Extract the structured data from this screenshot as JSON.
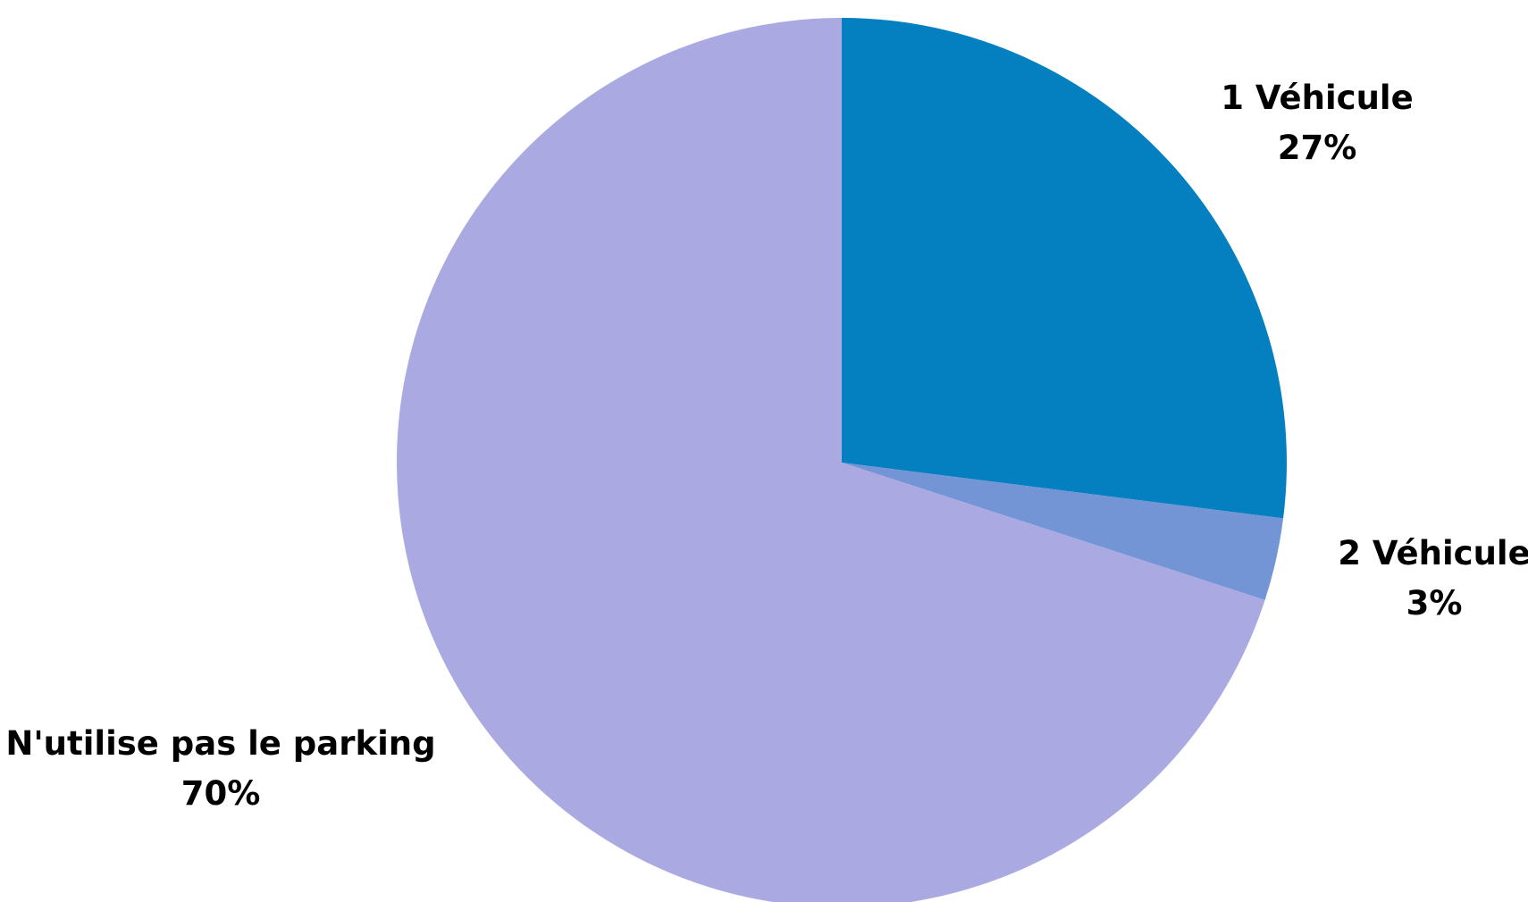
{
  "chart_data": {
    "type": "pie",
    "title": "",
    "slices": [
      {
        "label": "1 Véhicule",
        "value": 27,
        "value_label": "27%",
        "color": "#047fc0"
      },
      {
        "label": "2 Véhicule",
        "value": 3,
        "value_label": "3%",
        "color": "#7395d5"
      },
      {
        "label": "N'utilise pas le parking",
        "value": 70,
        "value_label": "70%",
        "color": "#aba9e2"
      }
    ],
    "start_angle": "12 o'clock",
    "direction": "clockwise",
    "legend": "none",
    "data_labels": "outside, bold, category name and percentage"
  }
}
